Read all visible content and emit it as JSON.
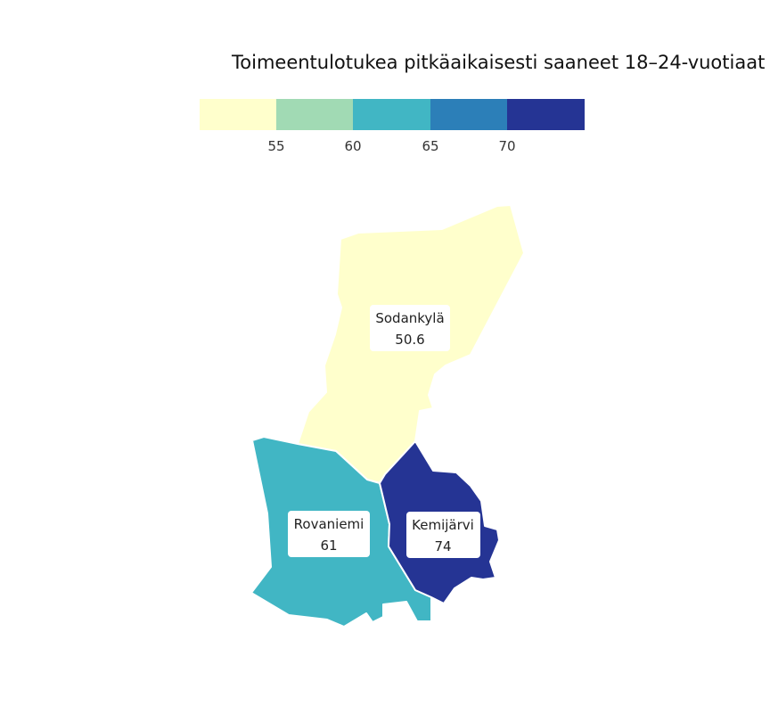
{
  "title": "Toimeentulotukea pitkäaikaisesti saaneet 18–24-vuotiaat",
  "legend": {
    "bins": [
      {
        "color": "#ffffcc"
      },
      {
        "color": "#a1dab4"
      },
      {
        "color": "#41b6c4"
      },
      {
        "color": "#2c7fb8"
      },
      {
        "color": "#253494"
      }
    ],
    "breaks": [
      "55",
      "60",
      "65",
      "70"
    ]
  },
  "regions": [
    {
      "name": "Sodankylä",
      "value": "50.6",
      "color": "#ffffcc"
    },
    {
      "name": "Rovaniemi",
      "value": "61",
      "color": "#41b6c4"
    },
    {
      "name": "Kemijärvi",
      "value": "74",
      "color": "#253494"
    }
  ]
}
